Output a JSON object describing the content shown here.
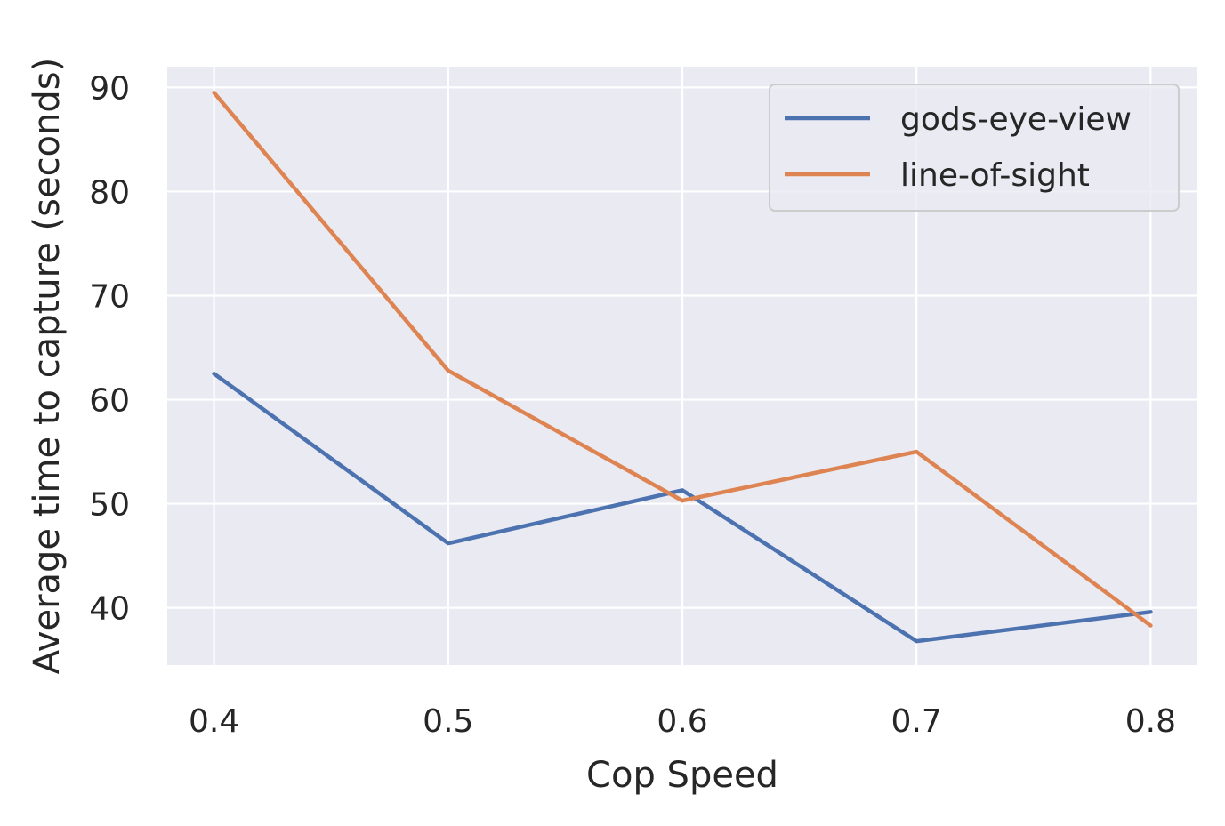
{
  "chart_data": {
    "type": "line",
    "title": "",
    "xlabel": "Cop Speed",
    "ylabel": "Average time to capture (seconds)",
    "x": [
      0.4,
      0.5,
      0.6,
      0.7,
      0.8
    ],
    "xticks": [
      "0.4",
      "0.5",
      "0.6",
      "0.7",
      "0.8"
    ],
    "yticks": [
      "40",
      "50",
      "60",
      "70",
      "80",
      "90"
    ],
    "xlim": [
      0.38,
      0.82
    ],
    "ylim": [
      34.5,
      92
    ],
    "grid": true,
    "legend_position": "top-right",
    "series": [
      {
        "name": "gods-eye-view",
        "color": "#4c72b0",
        "values": [
          62.5,
          46.2,
          51.3,
          36.8,
          39.6
        ]
      },
      {
        "name": "line-of-sight",
        "color": "#dd8452",
        "values": [
          89.5,
          62.8,
          50.3,
          55.0,
          38.3
        ]
      }
    ],
    "style": {
      "axes_background": "#eaeaf2",
      "grid_color": "#ffffff",
      "text_color": "#262626",
      "legend_frame": "#cccccc"
    }
  }
}
